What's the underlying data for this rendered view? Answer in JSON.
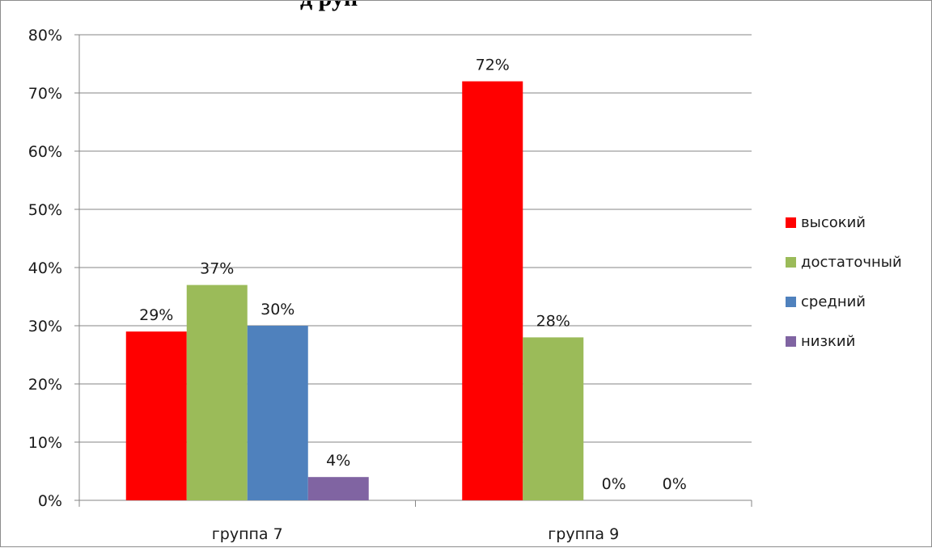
{
  "chart_data": {
    "type": "bar",
    "title": "д                руп",
    "categories": [
      "группа 7",
      "группа 9"
    ],
    "series": [
      {
        "name": "высокий",
        "color": "#ff0000",
        "values": [
          29,
          72
        ],
        "labels": [
          "29%",
          "72%"
        ]
      },
      {
        "name": "достаточный",
        "color": "#9bbb59",
        "values": [
          37,
          28
        ],
        "labels": [
          "37%",
          "28%"
        ]
      },
      {
        "name": "средний",
        "color": "#4f81bd",
        "values": [
          30,
          0
        ],
        "labels": [
          "30%",
          "0%"
        ]
      },
      {
        "name": "низкий",
        "color": "#8064a2",
        "values": [
          4,
          0
        ],
        "labels": [
          "4%",
          "0%"
        ]
      }
    ],
    "ylim": [
      0,
      80
    ],
    "yticks": [
      "0%",
      "10%",
      "20%",
      "30%",
      "40%",
      "50%",
      "60%",
      "70%",
      "80%"
    ],
    "grid": true,
    "legend_position": "right",
    "xlabel": "",
    "ylabel": ""
  }
}
